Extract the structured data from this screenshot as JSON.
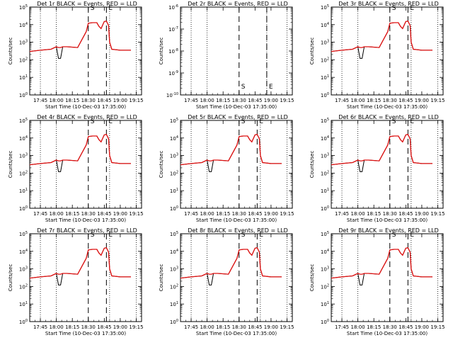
{
  "figure": {
    "legend_note": "BLACK = Events, RED = LLD",
    "series_colors": {
      "events": "#000000",
      "lld": "#e01010"
    }
  },
  "chart_data": [
    {
      "type": "line",
      "title": "Det 1r BLACK = Events, RED = LLD",
      "detector": "Det 1r",
      "has_data": true,
      "xlabel": "Start Time (10-Dec-03 17:35:00)",
      "ylabel": "Counts/sec",
      "x_ticks": [
        "17:45",
        "18:00",
        "18:15",
        "18:30",
        "18:45",
        "19:00",
        "19:15"
      ],
      "y_tick_exponents": [
        0,
        1,
        2,
        3,
        4,
        5
      ],
      "ylog": true,
      "ylim_exp": [
        0,
        5
      ],
      "markers": [
        {
          "label": "S",
          "time": "18:30"
        },
        {
          "label": "E",
          "time": "18:47"
        }
      ],
      "dotted_times": [
        "17:45",
        "18:00",
        "18:50",
        "19:15"
      ],
      "x": [
        "17:35",
        "17:45",
        "17:55",
        "18:00",
        "18:02",
        "18:04",
        "18:06",
        "18:10",
        "18:20",
        "18:28",
        "18:30",
        "18:34",
        "18:38",
        "18:40",
        "18:42",
        "18:45",
        "18:47",
        "18:49",
        "18:50",
        "18:52",
        "19:00",
        "19:10"
      ],
      "series": [
        {
          "key": "events",
          "values": [
            300.0,
            350.0,
            400.0,
            550.0,
            120.0,
            120.0,
            550.0,
            550.0,
            500.0,
            4000.0,
            12000.0,
            13000.0,
            13000.0,
            8000.0,
            6000.0,
            15000.0,
            16000.0,
            9000.0,
            1000.0,
            400.0,
            350.0,
            350.0
          ]
        },
        {
          "key": "lld",
          "values": [
            300.0,
            350.0,
            400.0,
            550.0,
            500.0,
            500.0,
            550.0,
            550.0,
            500.0,
            4000.0,
            12000.0,
            13000.0,
            13000.0,
            8000.0,
            6000.0,
            15000.0,
            16000.0,
            9000.0,
            1000.0,
            400.0,
            350.0,
            350.0
          ]
        }
      ]
    },
    {
      "type": "line",
      "title": "Det 2r BLACK = Events, RED = LLD",
      "detector": "Det 2r",
      "has_data": false,
      "xlabel": "Start Time (10-Dec-03 17:35:00)",
      "ylabel": "Counts/sec",
      "x_ticks": [
        "17:45",
        "18:00",
        "18:15",
        "18:30",
        "18:45",
        "19:00",
        "19:15"
      ],
      "y_tick_exponents": [
        -10,
        -9,
        -8,
        -7,
        -6
      ],
      "ylog": true,
      "ylim_exp": [
        -10,
        -6
      ],
      "markers": [
        {
          "label": "S",
          "time": "18:30"
        },
        {
          "label": "E",
          "time": "18:56"
        }
      ],
      "dotted_times": [
        "17:45",
        "18:00",
        "18:56",
        "19:15"
      ],
      "x": [],
      "series": []
    },
    {
      "type": "line",
      "title": "Det 3r BLACK = Events, RED = LLD",
      "detector": "Det 3r",
      "has_data": true,
      "xlabel": "Start Time (10-Dec-03 17:35:00)",
      "ylabel": "Counts/sec",
      "x_ticks": [
        "17:45",
        "18:00",
        "18:15",
        "18:30",
        "18:45",
        "19:00",
        "19:15"
      ],
      "y_tick_exponents": [
        0,
        1,
        2,
        3,
        4,
        5
      ],
      "ylog": true,
      "ylim_exp": [
        0,
        5
      ],
      "markers": [
        {
          "label": "S",
          "time": "18:30"
        },
        {
          "label": "E",
          "time": "18:47"
        }
      ],
      "dotted_times": [
        "17:45",
        "18:00",
        "18:50",
        "19:15"
      ],
      "x": [
        "17:35",
        "17:45",
        "17:55",
        "18:00",
        "18:02",
        "18:04",
        "18:06",
        "18:10",
        "18:20",
        "18:28",
        "18:30",
        "18:34",
        "18:38",
        "18:40",
        "18:42",
        "18:45",
        "18:47",
        "18:49",
        "18:50",
        "18:52",
        "19:00",
        "19:10"
      ],
      "series": [
        {
          "key": "events",
          "values": [
            300.0,
            350.0,
            400.0,
            550.0,
            120.0,
            120.0,
            550.0,
            550.0,
            500.0,
            4000.0,
            12000.0,
            13000.0,
            13000.0,
            8000.0,
            6000.0,
            15000.0,
            16000.0,
            9000.0,
            1000.0,
            400.0,
            350.0,
            350.0
          ]
        },
        {
          "key": "lld",
          "values": [
            300.0,
            350.0,
            400.0,
            550.0,
            500.0,
            500.0,
            550.0,
            550.0,
            500.0,
            4000.0,
            12000.0,
            13000.0,
            13000.0,
            8000.0,
            6000.0,
            15000.0,
            16000.0,
            9000.0,
            1000.0,
            400.0,
            350.0,
            350.0
          ]
        }
      ]
    },
    {
      "type": "line",
      "title": "Det 4r BLACK = Events, RED = LLD",
      "detector": "Det 4r",
      "has_data": true,
      "xlabel": "Start Time (10-Dec-03 17:35:00)",
      "ylabel": "Counts/sec",
      "x_ticks": [
        "17:45",
        "18:00",
        "18:15",
        "18:30",
        "18:45",
        "19:00",
        "19:15"
      ],
      "y_tick_exponents": [
        0,
        1,
        2,
        3,
        4,
        5
      ],
      "ylog": true,
      "ylim_exp": [
        0,
        5
      ],
      "markers": [
        {
          "label": "S",
          "time": "18:30"
        },
        {
          "label": "E",
          "time": "18:47"
        }
      ],
      "dotted_times": [
        "17:45",
        "18:00",
        "18:50",
        "19:15"
      ],
      "x": [
        "17:35",
        "17:45",
        "17:55",
        "18:00",
        "18:02",
        "18:04",
        "18:06",
        "18:10",
        "18:20",
        "18:28",
        "18:30",
        "18:34",
        "18:38",
        "18:40",
        "18:42",
        "18:45",
        "18:47",
        "18:49",
        "18:50",
        "18:52",
        "19:00",
        "19:10"
      ],
      "series": [
        {
          "key": "events",
          "values": [
            300.0,
            350.0,
            400.0,
            550.0,
            120.0,
            120.0,
            550.0,
            550.0,
            500.0,
            4000.0,
            12000.0,
            13000.0,
            13000.0,
            8000.0,
            6000.0,
            15000.0,
            16000.0,
            9000.0,
            1000.0,
            400.0,
            350.0,
            350.0
          ]
        },
        {
          "key": "lld",
          "values": [
            300.0,
            350.0,
            400.0,
            550.0,
            500.0,
            500.0,
            550.0,
            550.0,
            500.0,
            4000.0,
            12000.0,
            13000.0,
            13000.0,
            8000.0,
            6000.0,
            15000.0,
            16000.0,
            9000.0,
            1000.0,
            400.0,
            350.0,
            350.0
          ]
        }
      ]
    },
    {
      "type": "line",
      "title": "Det 5r BLACK = Events, RED = LLD",
      "detector": "Det 5r",
      "has_data": true,
      "xlabel": "Start Time (10-Dec-03 17:35:00)",
      "ylabel": "Counts/sec",
      "x_ticks": [
        "17:45",
        "18:00",
        "18:15",
        "18:30",
        "18:45",
        "19:00",
        "19:15"
      ],
      "y_tick_exponents": [
        0,
        1,
        2,
        3,
        4,
        5
      ],
      "ylog": true,
      "ylim_exp": [
        0,
        5
      ],
      "markers": [
        {
          "label": "S",
          "time": "18:30"
        },
        {
          "label": "E",
          "time": "18:47"
        }
      ],
      "dotted_times": [
        "17:45",
        "18:00",
        "18:50",
        "19:15"
      ],
      "x": [
        "17:35",
        "17:45",
        "17:55",
        "18:00",
        "18:02",
        "18:04",
        "18:06",
        "18:10",
        "18:20",
        "18:28",
        "18:30",
        "18:34",
        "18:38",
        "18:40",
        "18:42",
        "18:45",
        "18:47",
        "18:49",
        "18:50",
        "18:52",
        "19:00",
        "19:10"
      ],
      "series": [
        {
          "key": "events",
          "values": [
            300.0,
            350.0,
            400.0,
            550.0,
            120.0,
            120.0,
            550.0,
            550.0,
            500.0,
            4000.0,
            12000.0,
            13000.0,
            13000.0,
            8000.0,
            6000.0,
            15000.0,
            16000.0,
            9000.0,
            1000.0,
            400.0,
            350.0,
            350.0
          ]
        },
        {
          "key": "lld",
          "values": [
            300.0,
            350.0,
            400.0,
            550.0,
            500.0,
            500.0,
            550.0,
            550.0,
            500.0,
            4000.0,
            12000.0,
            13000.0,
            13000.0,
            8000.0,
            6000.0,
            15000.0,
            16000.0,
            9000.0,
            1000.0,
            400.0,
            350.0,
            350.0
          ]
        }
      ]
    },
    {
      "type": "line",
      "title": "Det 6r BLACK = Events, RED = LLD",
      "detector": "Det 6r",
      "has_data": true,
      "xlabel": "Start Time (10-Dec-03 17:35:00)",
      "ylabel": "Counts/sec",
      "x_ticks": [
        "17:45",
        "18:00",
        "18:15",
        "18:30",
        "18:45",
        "19:00",
        "19:15"
      ],
      "y_tick_exponents": [
        0,
        1,
        2,
        3,
        4,
        5
      ],
      "ylog": true,
      "ylim_exp": [
        0,
        5
      ],
      "markers": [
        {
          "label": "S",
          "time": "18:30"
        },
        {
          "label": "E",
          "time": "18:47"
        }
      ],
      "dotted_times": [
        "17:45",
        "18:00",
        "18:50",
        "19:15"
      ],
      "x": [
        "17:35",
        "17:45",
        "17:55",
        "18:00",
        "18:02",
        "18:04",
        "18:06",
        "18:10",
        "18:20",
        "18:28",
        "18:30",
        "18:34",
        "18:38",
        "18:40",
        "18:42",
        "18:45",
        "18:47",
        "18:49",
        "18:50",
        "18:52",
        "19:00",
        "19:10"
      ],
      "series": [
        {
          "key": "events",
          "values": [
            300.0,
            350.0,
            400.0,
            550.0,
            120.0,
            120.0,
            550.0,
            550.0,
            500.0,
            4000.0,
            12000.0,
            13000.0,
            13000.0,
            8000.0,
            6000.0,
            15000.0,
            16000.0,
            9000.0,
            1000.0,
            400.0,
            350.0,
            350.0
          ]
        },
        {
          "key": "lld",
          "values": [
            300.0,
            350.0,
            400.0,
            550.0,
            500.0,
            500.0,
            550.0,
            550.0,
            500.0,
            4000.0,
            12000.0,
            13000.0,
            13000.0,
            8000.0,
            6000.0,
            15000.0,
            16000.0,
            9000.0,
            1000.0,
            400.0,
            350.0,
            350.0
          ]
        }
      ]
    },
    {
      "type": "line",
      "title": "Det 7r BLACK = Events, RED = LLD",
      "detector": "Det 7r",
      "has_data": true,
      "xlabel": "Start Time (10-Dec-03 17:35:00)",
      "ylabel": "Counts/sec",
      "x_ticks": [
        "17:45",
        "18:00",
        "18:15",
        "18:30",
        "18:45",
        "19:00",
        "19:15"
      ],
      "y_tick_exponents": [
        0,
        1,
        2,
        3,
        4,
        5
      ],
      "ylog": true,
      "ylim_exp": [
        0,
        5
      ],
      "markers": [
        {
          "label": "S",
          "time": "18:30"
        },
        {
          "label": "E",
          "time": "18:47"
        }
      ],
      "dotted_times": [
        "17:45",
        "18:00",
        "18:50",
        "19:15"
      ],
      "x": [
        "17:35",
        "17:45",
        "17:55",
        "18:00",
        "18:02",
        "18:04",
        "18:06",
        "18:10",
        "18:20",
        "18:28",
        "18:30",
        "18:34",
        "18:38",
        "18:40",
        "18:42",
        "18:45",
        "18:47",
        "18:49",
        "18:50",
        "18:52",
        "19:00",
        "19:10"
      ],
      "series": [
        {
          "key": "events",
          "values": [
            300.0,
            350.0,
            400.0,
            550.0,
            120.0,
            120.0,
            550.0,
            550.0,
            500.0,
            4000.0,
            12000.0,
            13000.0,
            13000.0,
            8000.0,
            6000.0,
            15000.0,
            16000.0,
            9000.0,
            1000.0,
            400.0,
            350.0,
            350.0
          ]
        },
        {
          "key": "lld",
          "values": [
            300.0,
            350.0,
            400.0,
            550.0,
            500.0,
            500.0,
            550.0,
            550.0,
            500.0,
            4000.0,
            12000.0,
            13000.0,
            13000.0,
            8000.0,
            6000.0,
            15000.0,
            16000.0,
            9000.0,
            1000.0,
            400.0,
            350.0,
            350.0
          ]
        }
      ]
    },
    {
      "type": "line",
      "title": "Det 8r BLACK = Events, RED = LLD",
      "detector": "Det 8r",
      "has_data": true,
      "xlabel": "Start Time (10-Dec-03 17:35:00)",
      "ylabel": "Counts/sec",
      "x_ticks": [
        "17:45",
        "18:00",
        "18:15",
        "18:30",
        "18:45",
        "19:00",
        "19:15"
      ],
      "y_tick_exponents": [
        0,
        1,
        2,
        3,
        4,
        5
      ],
      "ylog": true,
      "ylim_exp": [
        0,
        5
      ],
      "markers": [
        {
          "label": "S",
          "time": "18:30"
        },
        {
          "label": "E",
          "time": "18:47"
        }
      ],
      "dotted_times": [
        "17:45",
        "18:00",
        "18:50",
        "19:15"
      ],
      "x": [
        "17:35",
        "17:45",
        "17:55",
        "18:00",
        "18:02",
        "18:04",
        "18:06",
        "18:10",
        "18:20",
        "18:28",
        "18:30",
        "18:34",
        "18:38",
        "18:40",
        "18:42",
        "18:45",
        "18:47",
        "18:49",
        "18:50",
        "18:52",
        "19:00",
        "19:10"
      ],
      "series": [
        {
          "key": "events",
          "values": [
            300.0,
            350.0,
            400.0,
            550.0,
            120.0,
            120.0,
            550.0,
            550.0,
            500.0,
            4000.0,
            12000.0,
            13000.0,
            13000.0,
            8000.0,
            6000.0,
            15000.0,
            16000.0,
            9000.0,
            1000.0,
            400.0,
            350.0,
            350.0
          ]
        },
        {
          "key": "lld",
          "values": [
            300.0,
            350.0,
            400.0,
            550.0,
            500.0,
            500.0,
            550.0,
            550.0,
            500.0,
            4000.0,
            12000.0,
            13000.0,
            13000.0,
            8000.0,
            6000.0,
            15000.0,
            16000.0,
            9000.0,
            1000.0,
            400.0,
            350.0,
            350.0
          ]
        }
      ]
    },
    {
      "type": "line",
      "title": "Det 9r BLACK = Events, RED = LLD",
      "detector": "Det 9r",
      "has_data": true,
      "xlabel": "Start Time (10-Dec-03 17:35:00)",
      "ylabel": "Counts/sec",
      "x_ticks": [
        "17:45",
        "18:00",
        "18:15",
        "18:30",
        "18:45",
        "19:00",
        "19:15"
      ],
      "y_tick_exponents": [
        0,
        1,
        2,
        3,
        4,
        5
      ],
      "ylog": true,
      "ylim_exp": [
        0,
        5
      ],
      "markers": [
        {
          "label": "S",
          "time": "18:30"
        },
        {
          "label": "E",
          "time": "18:47"
        }
      ],
      "dotted_times": [
        "17:45",
        "18:00",
        "18:50",
        "19:15"
      ],
      "x": [
        "17:35",
        "17:45",
        "17:55",
        "18:00",
        "18:02",
        "18:04",
        "18:06",
        "18:10",
        "18:20",
        "18:28",
        "18:30",
        "18:34",
        "18:38",
        "18:40",
        "18:42",
        "18:45",
        "18:47",
        "18:49",
        "18:50",
        "18:52",
        "19:00",
        "19:10"
      ],
      "series": [
        {
          "key": "events",
          "values": [
            300.0,
            350.0,
            400.0,
            550.0,
            120.0,
            120.0,
            550.0,
            550.0,
            500.0,
            4000.0,
            12000.0,
            13000.0,
            13000.0,
            8000.0,
            6000.0,
            15000.0,
            16000.0,
            9000.0,
            1000.0,
            400.0,
            350.0,
            350.0
          ]
        },
        {
          "key": "lld",
          "values": [
            300.0,
            350.0,
            400.0,
            550.0,
            500.0,
            500.0,
            550.0,
            550.0,
            500.0,
            4000.0,
            12000.0,
            13000.0,
            13000.0,
            8000.0,
            6000.0,
            15000.0,
            16000.0,
            9000.0,
            1000.0,
            400.0,
            350.0,
            350.0
          ]
        }
      ]
    }
  ]
}
